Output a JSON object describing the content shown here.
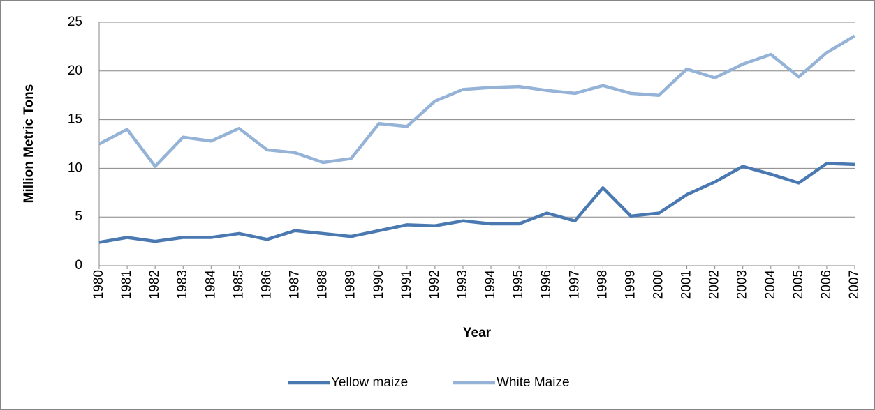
{
  "chart_data": {
    "type": "line",
    "y_label": "Million Metric Tons",
    "x_label": "Year",
    "categories": [
      "1980",
      "1981",
      "1982",
      "1983",
      "1984",
      "1985",
      "1986",
      "1987",
      "1988",
      "1989",
      "1990",
      "1991",
      "1992",
      "1993",
      "1994",
      "1995",
      "1996",
      "1997",
      "1998",
      "1999",
      "2000",
      "2001",
      "2002",
      "2003",
      "2004",
      "2005",
      "2006",
      "2007"
    ],
    "series": [
      {
        "name": "Yellow maize",
        "color": "#4a79b1",
        "values": [
          2.4,
          2.9,
          2.5,
          2.9,
          2.9,
          3.3,
          2.7,
          3.6,
          3.3,
          3.0,
          3.6,
          4.2,
          4.1,
          4.6,
          4.3,
          4.3,
          5.4,
          4.6,
          8.0,
          5.1,
          5.4,
          7.3,
          8.6,
          10.2,
          9.4,
          8.5,
          10.5,
          10.4
        ]
      },
      {
        "name": "White Maize",
        "color": "#95b3d7",
        "values": [
          12.5,
          14.0,
          10.2,
          13.2,
          12.8,
          14.1,
          11.9,
          11.6,
          10.6,
          11.0,
          14.6,
          14.3,
          16.9,
          18.1,
          18.3,
          18.4,
          18.0,
          17.7,
          18.5,
          17.7,
          17.5,
          20.2,
          19.3,
          20.7,
          21.7,
          19.4,
          21.9,
          23.6
        ]
      }
    ],
    "ylim": [
      0,
      25
    ],
    "yticks": [
      0,
      5,
      10,
      15,
      20,
      25
    ],
    "grid": true,
    "legend": "bottom"
  }
}
